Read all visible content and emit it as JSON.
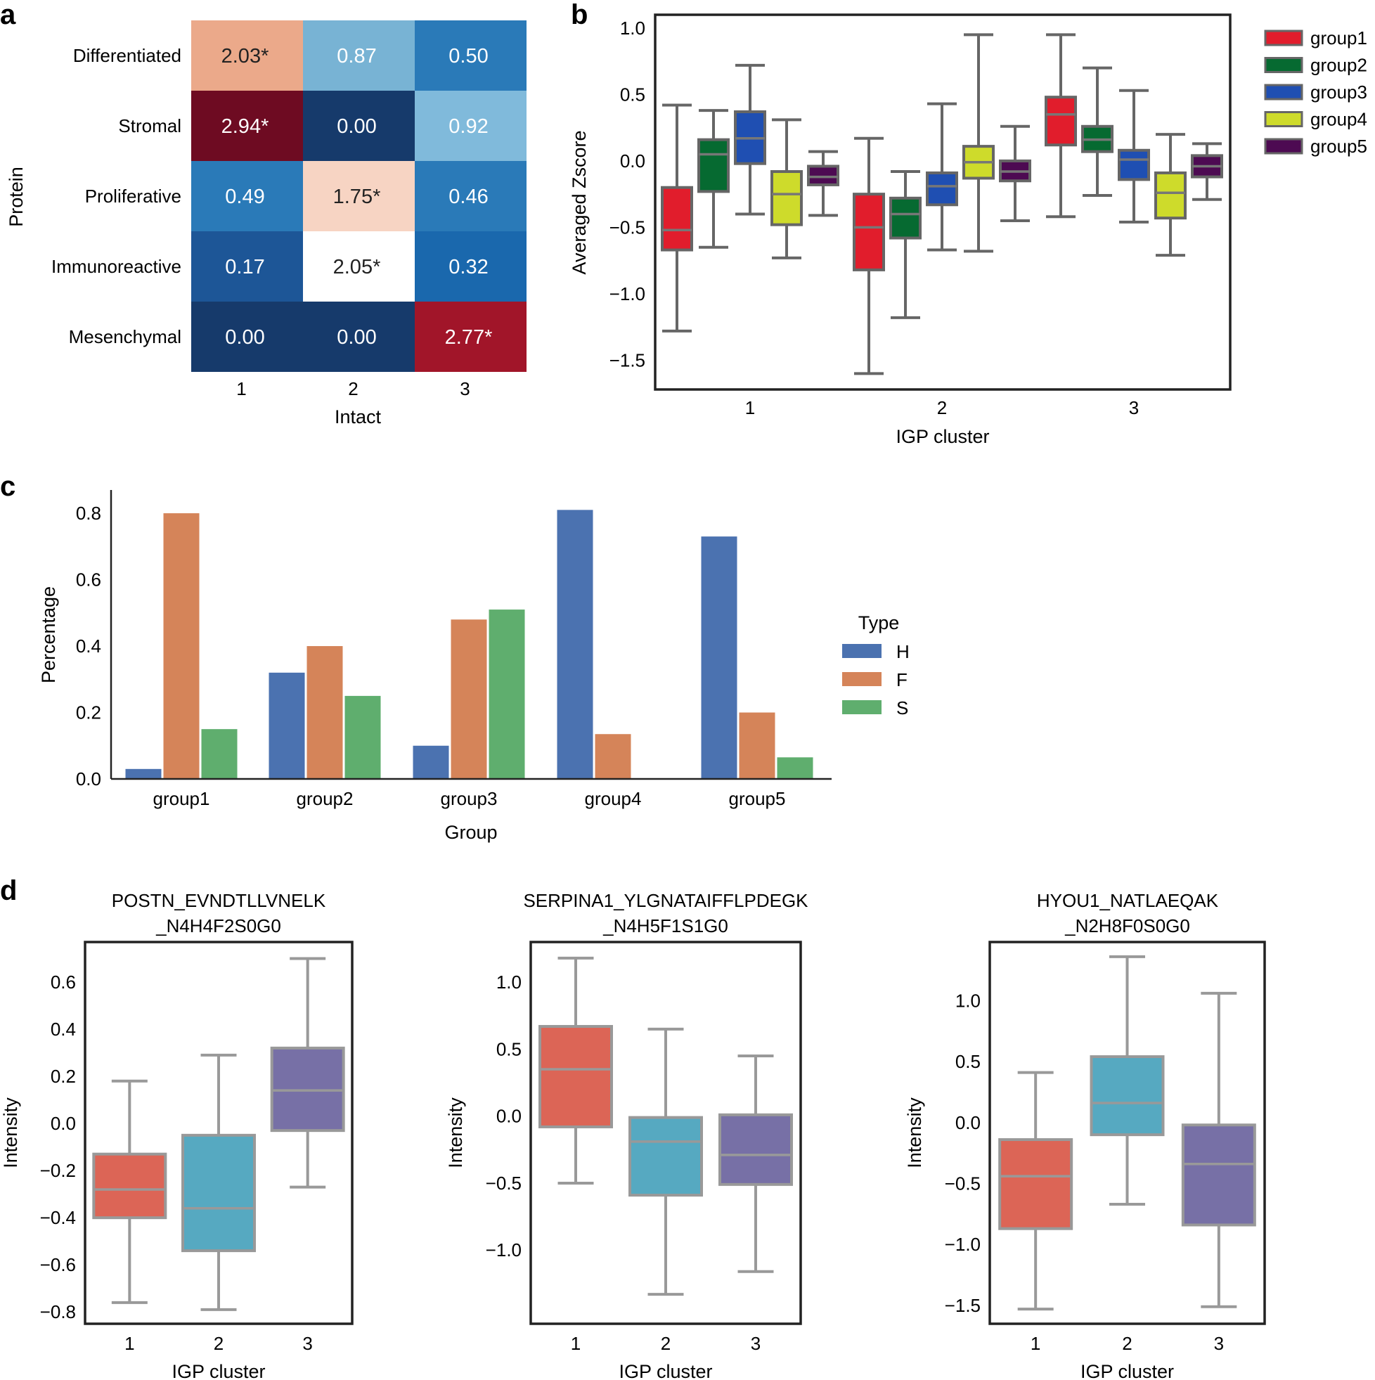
{
  "panels": {
    "a": "a",
    "b": "b",
    "c": "c",
    "d": "d"
  },
  "chart_data": [
    {
      "id": "a",
      "type": "heatmap",
      "xlabel": "Intact",
      "ylabel": "Protein",
      "x_categories": [
        "1",
        "2",
        "3"
      ],
      "y_categories": [
        "Differentiated",
        "Stromal",
        "Proliferative",
        "Immunoreactive",
        "Mesenchymal"
      ],
      "values": [
        [
          2.03,
          0.87,
          0.5
        ],
        [
          2.94,
          0.0,
          0.92
        ],
        [
          0.49,
          1.75,
          0.46
        ],
        [
          0.17,
          2.05,
          0.32
        ],
        [
          0.0,
          0.0,
          2.77
        ]
      ],
      "labels": [
        [
          "2.03*",
          "0.87",
          "0.50"
        ],
        [
          "2.94*",
          "0.00",
          "0.92"
        ],
        [
          "0.49",
          "1.75*",
          "0.46"
        ],
        [
          "0.17",
          "2.05*",
          "0.32"
        ],
        [
          "0.00",
          "0.00",
          "2.77*"
        ]
      ],
      "cell_colors": [
        [
          "#eba98a",
          "#78b3d4",
          "#2a7ab8"
        ],
        [
          "#6e0b22",
          "#163a6b",
          "#80badb"
        ],
        [
          "#2a7ab8",
          "#f7d4c3",
          "#2a7ab8"
        ],
        [
          "#1d5697",
          "#ffffff",
          "#1a68ad"
        ],
        [
          "#163a6b",
          "#163a6b",
          "#a11529"
        ]
      ]
    },
    {
      "id": "b",
      "type": "box",
      "xlabel": "IGP cluster",
      "ylabel": "Averaged Zscore",
      "categories": [
        "1",
        "2",
        "3"
      ],
      "ylim": [
        -1.72,
        1.1
      ],
      "yticks": [
        1.0,
        0.5,
        0.0,
        -0.5,
        -1.0,
        -1.5
      ],
      "ytick_labels": [
        "1.0",
        "0.5",
        "0.0",
        "−0.5",
        "−1.0",
        "−1.5"
      ],
      "legend": {
        "position": "right",
        "entries": [
          "group1",
          "group2",
          "group3",
          "group4",
          "group5"
        ]
      },
      "series": [
        {
          "name": "group1",
          "color": "#e11d2c",
          "boxes": [
            {
              "min": -1.28,
              "q1": -0.67,
              "median": -0.52,
              "q3": -0.2,
              "max": 0.42
            },
            {
              "min": -1.6,
              "q1": -0.82,
              "median": -0.5,
              "q3": -0.25,
              "max": 0.17
            },
            {
              "min": -0.42,
              "q1": 0.12,
              "median": 0.35,
              "q3": 0.48,
              "max": 0.95
            }
          ]
        },
        {
          "name": "group2",
          "color": "#066a31",
          "boxes": [
            {
              "min": -0.65,
              "q1": -0.23,
              "median": 0.05,
              "q3": 0.16,
              "max": 0.38
            },
            {
              "min": -1.18,
              "q1": -0.58,
              "median": -0.4,
              "q3": -0.28,
              "max": -0.08
            },
            {
              "min": -0.26,
              "q1": 0.07,
              "median": 0.16,
              "q3": 0.26,
              "max": 0.7
            }
          ]
        },
        {
          "name": "group3",
          "color": "#1f4fb2",
          "boxes": [
            {
              "min": -0.4,
              "q1": -0.02,
              "median": 0.17,
              "q3": 0.37,
              "max": 0.72
            },
            {
              "min": -0.67,
              "q1": -0.33,
              "median": -0.19,
              "q3": -0.09,
              "max": 0.43
            },
            {
              "min": -0.46,
              "q1": -0.14,
              "median": 0.01,
              "q3": 0.08,
              "max": 0.53
            }
          ]
        },
        {
          "name": "group4",
          "color": "#cedb2b",
          "boxes": [
            {
              "min": -0.73,
              "q1": -0.48,
              "median": -0.25,
              "q3": -0.08,
              "max": 0.31
            },
            {
              "min": -0.68,
              "q1": -0.13,
              "median": -0.01,
              "q3": 0.11,
              "max": 0.95
            },
            {
              "min": -0.71,
              "q1": -0.43,
              "median": -0.24,
              "q3": -0.09,
              "max": 0.2
            }
          ]
        },
        {
          "name": "group5",
          "color": "#4d0a52",
          "boxes": [
            {
              "min": -0.41,
              "q1": -0.18,
              "median": -0.12,
              "q3": -0.04,
              "max": 0.07
            },
            {
              "min": -0.45,
              "q1": -0.15,
              "median": -0.08,
              "q3": 0.0,
              "max": 0.26
            },
            {
              "min": -0.29,
              "q1": -0.12,
              "median": -0.04,
              "q3": 0.04,
              "max": 0.13
            }
          ]
        }
      ]
    },
    {
      "id": "c",
      "type": "bar",
      "xlabel": "Group",
      "ylabel": "Percentage",
      "categories": [
        "group1",
        "group2",
        "group3",
        "group4",
        "group5"
      ],
      "ylim": [
        0,
        0.87
      ],
      "yticks": [
        0.0,
        0.2,
        0.4,
        0.6,
        0.8
      ],
      "ytick_labels": [
        "0.0",
        "0.2",
        "0.4",
        "0.6",
        "0.8"
      ],
      "legend": {
        "title": "Type",
        "position": "right"
      },
      "series": [
        {
          "name": "H",
          "color": "#4b72b0",
          "values": [
            0.03,
            0.32,
            0.1,
            0.81,
            0.73
          ]
        },
        {
          "name": "F",
          "color": "#d58459",
          "values": [
            0.8,
            0.4,
            0.48,
            0.135,
            0.2
          ]
        },
        {
          "name": "S",
          "color": "#5fae6e",
          "values": [
            0.15,
            0.25,
            0.51,
            0.0,
            0.065
          ]
        }
      ]
    },
    {
      "id": "d1",
      "type": "box",
      "title": "POSTN_EVNDTLLVNELK\n_N4H4F2S0G0",
      "title_lines": [
        "POSTN_EVNDTLLVNELK",
        "_N4H4F2S0G0"
      ],
      "xlabel": "IGP cluster",
      "ylabel": "Intensity",
      "categories": [
        "1",
        "2",
        "3"
      ],
      "ylim": [
        -0.85,
        0.77
      ],
      "yticks": [
        0.6,
        0.4,
        0.2,
        0.0,
        -0.2,
        -0.4,
        -0.6,
        -0.8
      ],
      "ytick_labels": [
        "0.6",
        "0.4",
        "0.2",
        "0.0",
        "−0.2",
        "−0.4",
        "−0.6",
        "−0.8"
      ],
      "colors": [
        "#dc6556",
        "#56a9c1",
        "#7770a6"
      ],
      "boxes": [
        {
          "min": -0.76,
          "q1": -0.4,
          "median": -0.28,
          "q3": -0.13,
          "max": 0.18
        },
        {
          "min": -0.79,
          "q1": -0.54,
          "median": -0.36,
          "q3": -0.05,
          "max": 0.29
        },
        {
          "min": -0.27,
          "q1": -0.03,
          "median": 0.14,
          "q3": 0.32,
          "max": 0.7
        }
      ]
    },
    {
      "id": "d2",
      "type": "box",
      "title": "SERPINA1_YLGNATAIFFLPDEGK\n_N4H5F1S1G0",
      "title_lines": [
        "SERPINA1_YLGNATAIFFLPDEGK",
        "_N4H5F1S1G0"
      ],
      "xlabel": "IGP cluster",
      "ylabel": "Intensity",
      "categories": [
        "1",
        "2",
        "3"
      ],
      "ylim": [
        -1.55,
        1.3
      ],
      "yticks": [
        1.0,
        0.5,
        0.0,
        -0.5,
        -1.0
      ],
      "ytick_labels": [
        "1.0",
        "0.5",
        "0.0",
        "−0.5",
        "−1.0"
      ],
      "colors": [
        "#dc6556",
        "#56a9c1",
        "#7770a6"
      ],
      "boxes": [
        {
          "min": -0.5,
          "q1": -0.08,
          "median": 0.35,
          "q3": 0.67,
          "max": 1.18
        },
        {
          "min": -1.33,
          "q1": -0.59,
          "median": -0.19,
          "q3": -0.01,
          "max": 0.65
        },
        {
          "min": -1.16,
          "q1": -0.51,
          "median": -0.29,
          "q3": 0.01,
          "max": 0.45
        }
      ]
    },
    {
      "id": "d3",
      "type": "box",
      "title": "HYOU1_NATLAEQAK\n_N2H8F0S0G0",
      "title_lines": [
        "HYOU1_NATLAEQAK",
        "_N2H8F0S0G0"
      ],
      "xlabel": "IGP cluster",
      "ylabel": "Intensity",
      "categories": [
        "1",
        "2",
        "3"
      ],
      "ylim": [
        -1.65,
        1.48
      ],
      "yticks": [
        1.0,
        0.5,
        0.0,
        -0.5,
        -1.0,
        -1.5
      ],
      "ytick_labels": [
        "1.0",
        "0.5",
        "0.0",
        "−0.5",
        "−1.0",
        "−1.5"
      ],
      "colors": [
        "#dc6556",
        "#56a9c1",
        "#7770a6"
      ],
      "boxes": [
        {
          "min": -1.53,
          "q1": -0.87,
          "median": -0.44,
          "q3": -0.14,
          "max": 0.41
        },
        {
          "min": -0.67,
          "q1": -0.1,
          "median": 0.16,
          "q3": 0.54,
          "max": 1.36
        },
        {
          "min": -1.51,
          "q1": -0.84,
          "median": -0.34,
          "q3": -0.02,
          "max": 1.06
        }
      ]
    }
  ]
}
